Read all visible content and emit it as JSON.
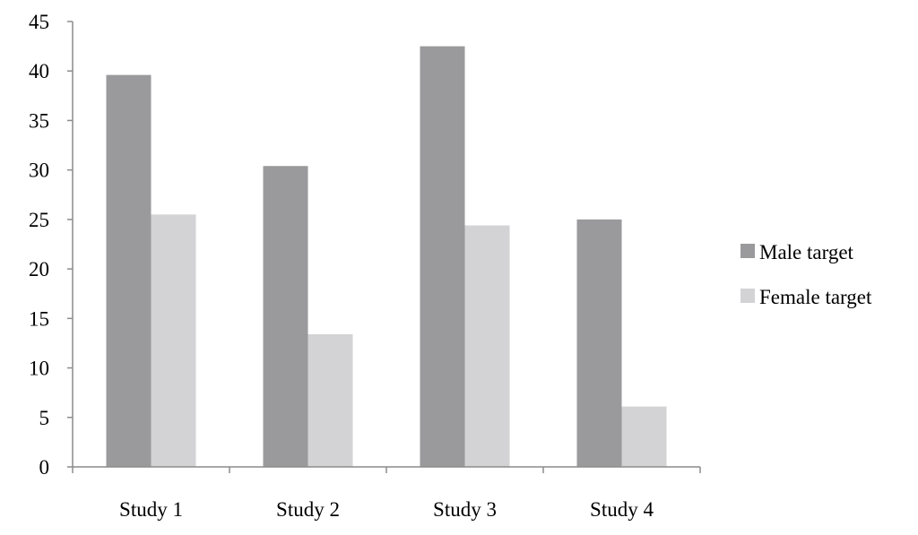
{
  "chart_data": {
    "type": "bar",
    "title": "",
    "xlabel": "",
    "ylabel": "",
    "categories": [
      "Study 1",
      "Study 2",
      "Study 3",
      "Study 4"
    ],
    "series": [
      {
        "name": "Male target",
        "values": [
          39.6,
          30.4,
          42.5,
          25.0
        ],
        "color": "#9a9a9c"
      },
      {
        "name": "Female target",
        "values": [
          25.5,
          13.4,
          24.4,
          6.1
        ],
        "color": "#d3d3d5"
      }
    ],
    "ylim": [
      0,
      45
    ],
    "yticks": [
      "0",
      "5",
      "10",
      "15",
      "20",
      "25",
      "30",
      "35",
      "40",
      "45"
    ],
    "grid": false,
    "legend_position": "right"
  }
}
